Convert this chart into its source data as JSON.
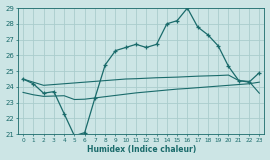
{
  "xlabel": "Humidex (Indice chaleur)",
  "background_color": "#cce5e5",
  "grid_color": "#aacccc",
  "line_color": "#1a6b6b",
  "x_values": [
    0,
    1,
    2,
    3,
    4,
    5,
    6,
    7,
    8,
    9,
    10,
    11,
    12,
    13,
    14,
    15,
    16,
    17,
    18,
    19,
    20,
    21,
    22,
    23
  ],
  "main_line": [
    24.5,
    24.2,
    23.6,
    23.7,
    22.3,
    20.9,
    21.1,
    23.3,
    25.4,
    26.3,
    26.5,
    26.7,
    26.5,
    26.7,
    28.0,
    28.2,
    29.0,
    27.8,
    27.3,
    26.6,
    25.3,
    24.4,
    24.3,
    24.9
  ],
  "upper_flat": [
    24.5,
    24.3,
    24.1,
    24.15,
    24.2,
    24.25,
    24.3,
    24.35,
    24.4,
    24.45,
    24.5,
    24.52,
    24.55,
    24.58,
    24.6,
    24.62,
    24.65,
    24.68,
    24.7,
    24.72,
    24.75,
    24.4,
    24.35,
    23.6
  ],
  "lower_flat": [
    23.65,
    23.5,
    23.4,
    23.42,
    23.44,
    23.2,
    23.22,
    23.3,
    23.38,
    23.46,
    23.54,
    23.62,
    23.68,
    23.74,
    23.8,
    23.86,
    23.9,
    23.95,
    24.0,
    24.05,
    24.1,
    24.15,
    24.2,
    24.3
  ],
  "ylim": [
    21,
    29
  ],
  "xlim_min": -0.5,
  "xlim_max": 23.5
}
